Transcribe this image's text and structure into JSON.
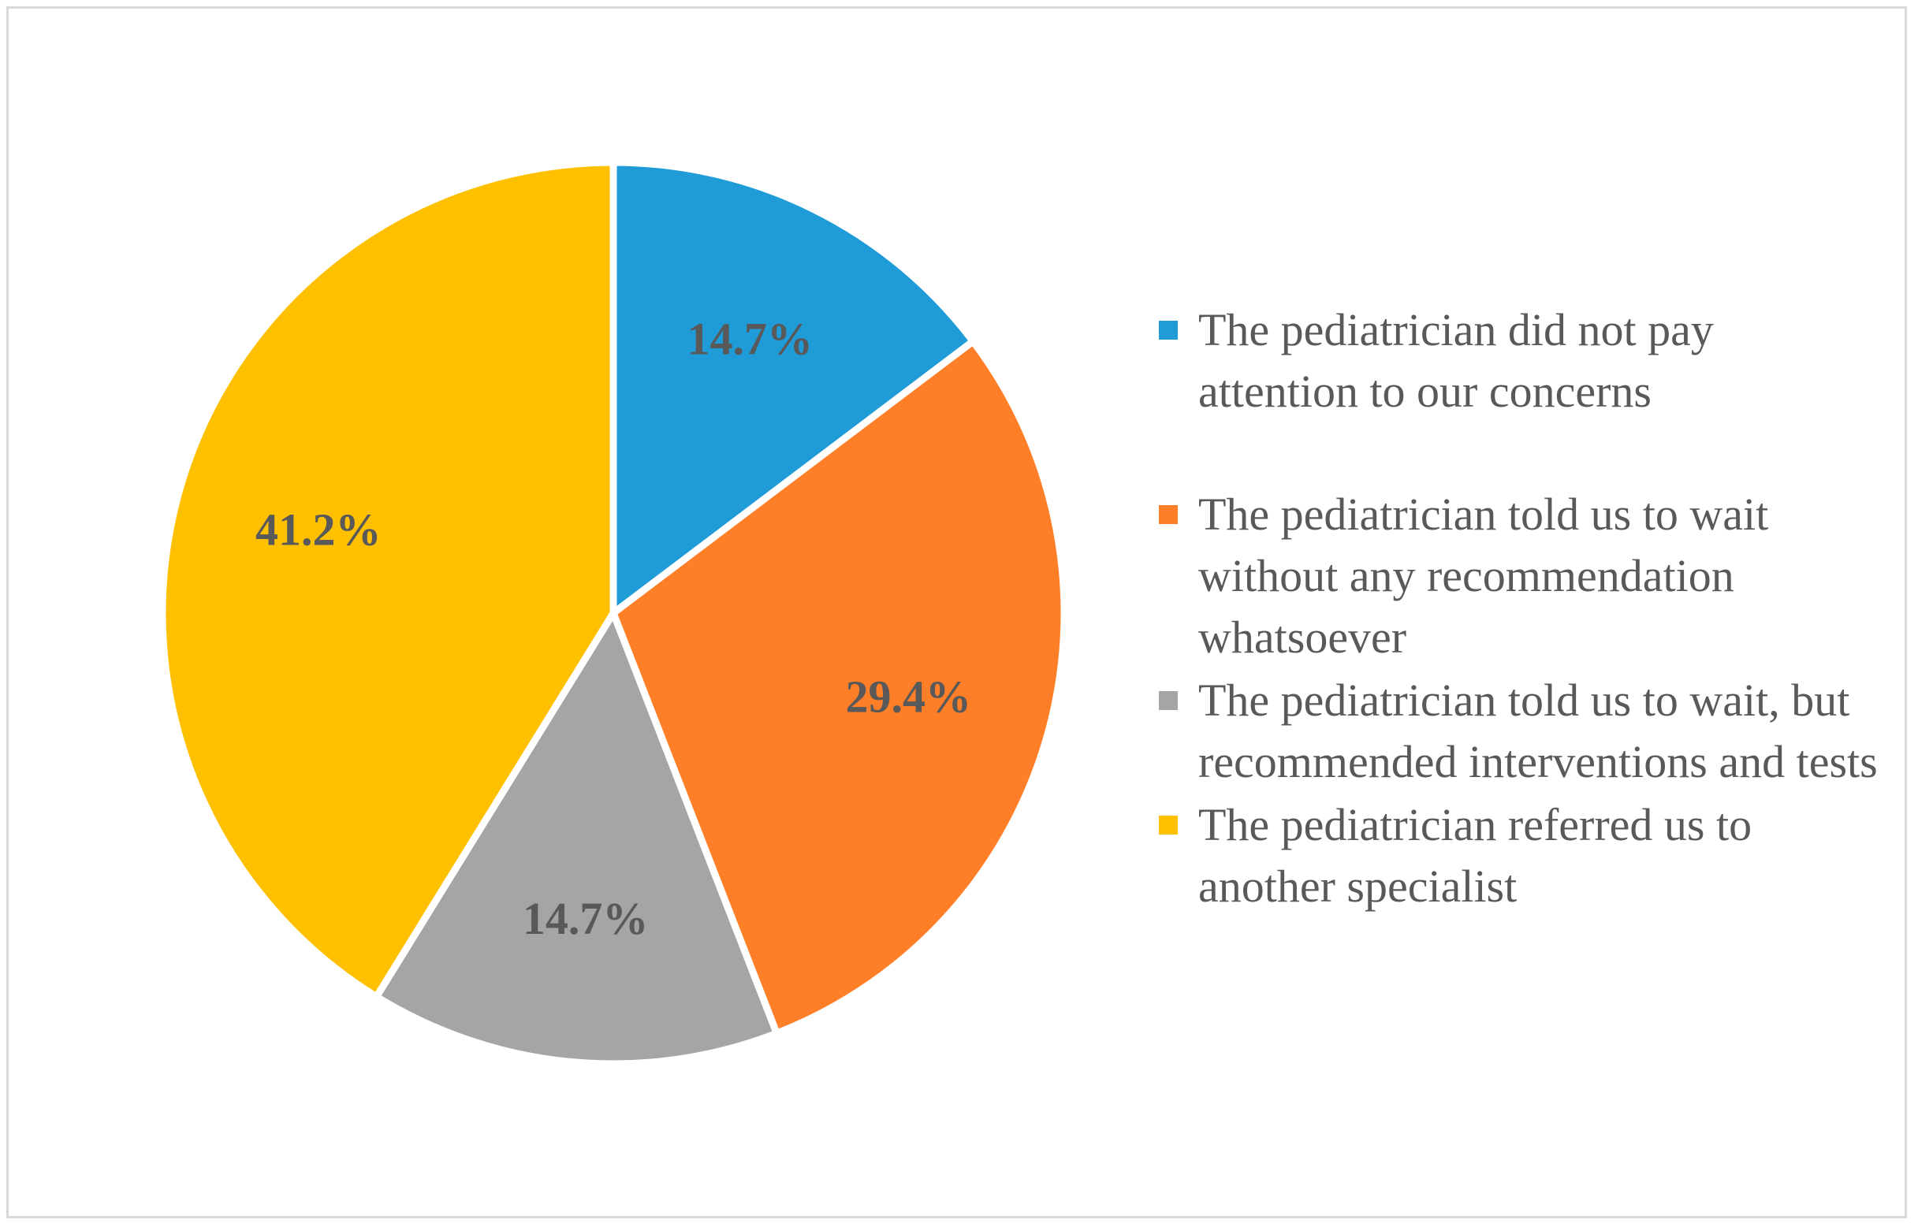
{
  "chart_data": {
    "type": "pie",
    "slices": [
      {
        "label": "The pediatrician did not pay attention to our concerns",
        "value": 14.7,
        "display": "14.7%",
        "color": "#1f9bd7"
      },
      {
        "label": "The pediatrician told us to wait without any recommendation whatsoever",
        "value": 29.4,
        "display": "29.4%",
        "color": "#fe7f27"
      },
      {
        "label": "The pediatrician told us to wait, but recommended interventions and tests",
        "value": 14.7,
        "display": "14.7%",
        "color": "#a5a5a5"
      },
      {
        "label": "The pediatrician referred us to another specialist",
        "value": 41.2,
        "display": "41.2%",
        "color": "#ffc000"
      }
    ],
    "start_angle": "12 o'clock",
    "direction": "clockwise",
    "legend_position": "right"
  }
}
